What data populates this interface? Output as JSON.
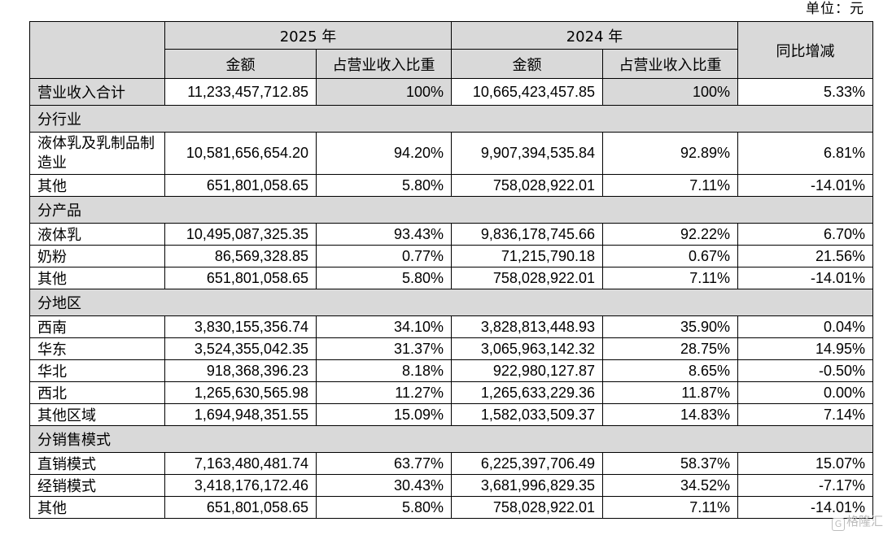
{
  "unit": "单位：元",
  "header": {
    "year1": "2025 年",
    "year2": "2024 年",
    "amount": "金额",
    "ratio": "占营业收入比重",
    "yoy": "同比增减"
  },
  "total": {
    "name": "营业收入合计",
    "a2025": "11,233,457,712.85",
    "r2025": "100%",
    "a2024": "10,665,423,457.85",
    "r2024": "100%",
    "yoy": "5.33%"
  },
  "sections": [
    {
      "title": "分行业",
      "rows": [
        {
          "name": "液体乳及乳制品制造业",
          "a2025": "10,581,656,654.20",
          "r2025": "94.20%",
          "a2024": "9,907,394,535.84",
          "r2024": "92.89%",
          "yoy": "6.81%"
        },
        {
          "name": "其他",
          "a2025": "651,801,058.65",
          "r2025": "5.80%",
          "a2024": "758,028,922.01",
          "r2024": "7.11%",
          "yoy": "-14.01%"
        }
      ]
    },
    {
      "title": "分产品",
      "rows": [
        {
          "name": "液体乳",
          "a2025": "10,495,087,325.35",
          "r2025": "93.43%",
          "a2024": "9,836,178,745.66",
          "r2024": "92.22%",
          "yoy": "6.70%"
        },
        {
          "name": "奶粉",
          "a2025": "86,569,328.85",
          "r2025": "0.77%",
          "a2024": "71,215,790.18",
          "r2024": "0.67%",
          "yoy": "21.56%"
        },
        {
          "name": "其他",
          "a2025": "651,801,058.65",
          "r2025": "5.80%",
          "a2024": "758,028,922.01",
          "r2024": "7.11%",
          "yoy": "-14.01%"
        }
      ]
    },
    {
      "title": "分地区",
      "rows": [
        {
          "name": "西南",
          "a2025": "3,830,155,356.74",
          "r2025": "34.10%",
          "a2024": "3,828,813,448.93",
          "r2024": "35.90%",
          "yoy": "0.04%"
        },
        {
          "name": "华东",
          "a2025": "3,524,355,042.35",
          "r2025": "31.37%",
          "a2024": "3,065,963,142.32",
          "r2024": "28.75%",
          "yoy": "14.95%"
        },
        {
          "name": "华北",
          "a2025": "918,368,396.23",
          "r2025": "8.18%",
          "a2024": "922,980,127.87",
          "r2024": "8.65%",
          "yoy": "-0.50%"
        },
        {
          "name": "西北",
          "a2025": "1,265,630,565.98",
          "r2025": "11.27%",
          "a2024": "1,265,633,229.36",
          "r2024": "11.87%",
          "yoy": "0.00%"
        },
        {
          "name": "其他区域",
          "a2025": "1,694,948,351.55",
          "r2025": "15.09%",
          "a2024": "1,582,033,509.37",
          "r2024": "14.83%",
          "yoy": "7.14%"
        }
      ]
    },
    {
      "title": "分销售模式",
      "rows": [
        {
          "name": "直销模式",
          "a2025": "7,163,480,481.74",
          "r2025": "63.77%",
          "a2024": "6,225,397,706.49",
          "r2024": "58.37%",
          "yoy": "15.07%"
        },
        {
          "name": "经销模式",
          "a2025": "3,418,176,172.46",
          "r2025": "30.43%",
          "a2024": "3,681,996,829.35",
          "r2024": "34.52%",
          "yoy": "-7.17%"
        },
        {
          "name": "其他",
          "a2025": "651,801,058.65",
          "r2025": "5.80%",
          "a2024": "758,028,922.01",
          "r2024": "7.11%",
          "yoy": "-14.01%"
        }
      ]
    }
  ],
  "watermark": {
    "glyph": "G",
    "text": "格隆汇"
  }
}
